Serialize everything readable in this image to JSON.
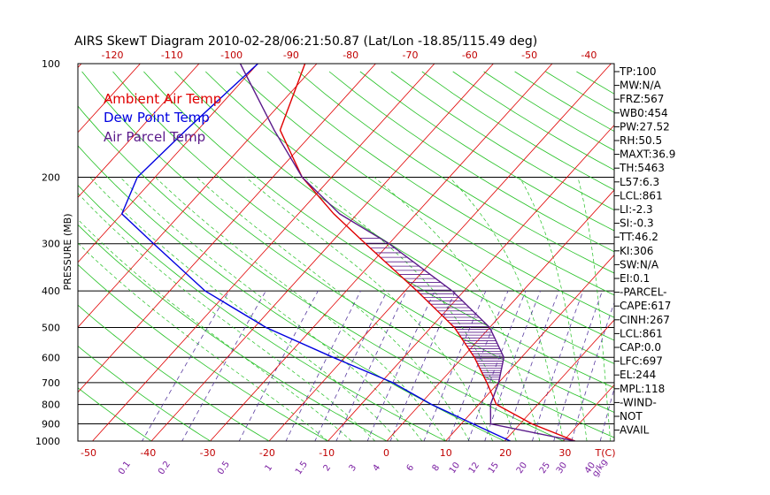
{
  "chart_data": {
    "type": "line",
    "title": "AIRS SkewT Diagram 2010-02-28/06:21:50.87 (Lat/Lon -18.85/115.49 deg)",
    "ylabel": "PRESSURE (MB)",
    "xlabel_top_ticks": [
      "-120",
      "-110",
      "-100",
      "-90",
      "-80",
      "-70",
      "-60",
      "-50",
      "-40"
    ],
    "xlabel_bottom_ticks": [
      "-50",
      "-40",
      "-30",
      "-20",
      "-10",
      "0",
      "10",
      "20",
      "30",
      "T(C)"
    ],
    "pressure_ticks": [
      "100",
      "200",
      "300",
      "400",
      "500",
      "600",
      "700",
      "800",
      "900",
      "1000"
    ],
    "mixing_ratio_labels": [
      "0.1",
      "0.2",
      "0.5",
      "1",
      "1.5",
      "2",
      "3",
      "4",
      "6",
      "8",
      "10",
      "12",
      "15",
      "20",
      "25",
      "30",
      "40",
      "g/kg"
    ],
    "legend": [
      {
        "label": "Ambient Air Temp",
        "color": "#e00000"
      },
      {
        "label": "Dew Point Temp",
        "color": "#0000e0"
      },
      {
        "label": "Air Parcel Temp",
        "color": "#5a1a8a"
      }
    ],
    "series": [
      {
        "name": "Ambient Air Temp",
        "points": [
          [
            100,
            -72
          ],
          [
            150,
            -66
          ],
          [
            200,
            -55
          ],
          [
            250,
            -44
          ],
          [
            300,
            -34
          ],
          [
            400,
            -18
          ],
          [
            500,
            -6
          ],
          [
            600,
            2
          ],
          [
            700,
            8
          ],
          [
            800,
            13
          ],
          [
            900,
            22
          ],
          [
            1000,
            32
          ]
        ]
      },
      {
        "name": "Dew Point Temp",
        "points": [
          [
            100,
            -80
          ],
          [
            150,
            -82
          ],
          [
            200,
            -83
          ],
          [
            250,
            -80
          ],
          [
            300,
            -70
          ],
          [
            400,
            -54
          ],
          [
            500,
            -38
          ],
          [
            600,
            -22
          ],
          [
            700,
            -8
          ],
          [
            800,
            2
          ],
          [
            900,
            12
          ],
          [
            1000,
            21
          ]
        ]
      },
      {
        "name": "Air Parcel Temp",
        "points": [
          [
            100,
            -83
          ],
          [
            150,
            -67
          ],
          [
            200,
            -55
          ],
          [
            250,
            -43
          ],
          [
            300,
            -30
          ],
          [
            400,
            -12
          ],
          [
            500,
            0
          ],
          [
            600,
            7
          ],
          [
            700,
            10
          ],
          [
            800,
            12
          ],
          [
            900,
            15
          ],
          [
            1000,
            32
          ]
        ]
      }
    ],
    "indices": [
      "TP:100",
      "MW:N/A",
      "FRZ:567",
      "WB0:454",
      "PW:27.52",
      "RH:50.5",
      "MAXT:36.9",
      "TH:5463",
      "L57:6.3",
      "LCL:861",
      "LI:-2.3",
      "SI:-0.3",
      "TT:46.2",
      "KI:306",
      "SW:N/A",
      "EI:0.1",
      "-PARCEL-",
      "CAPE:617",
      "CINH:267",
      "LCL:861",
      "CAP:0.0",
      "LFC:697",
      "EL:244",
      "MPL:118",
      "-WIND-",
      "NOT",
      "AVAIL"
    ]
  }
}
